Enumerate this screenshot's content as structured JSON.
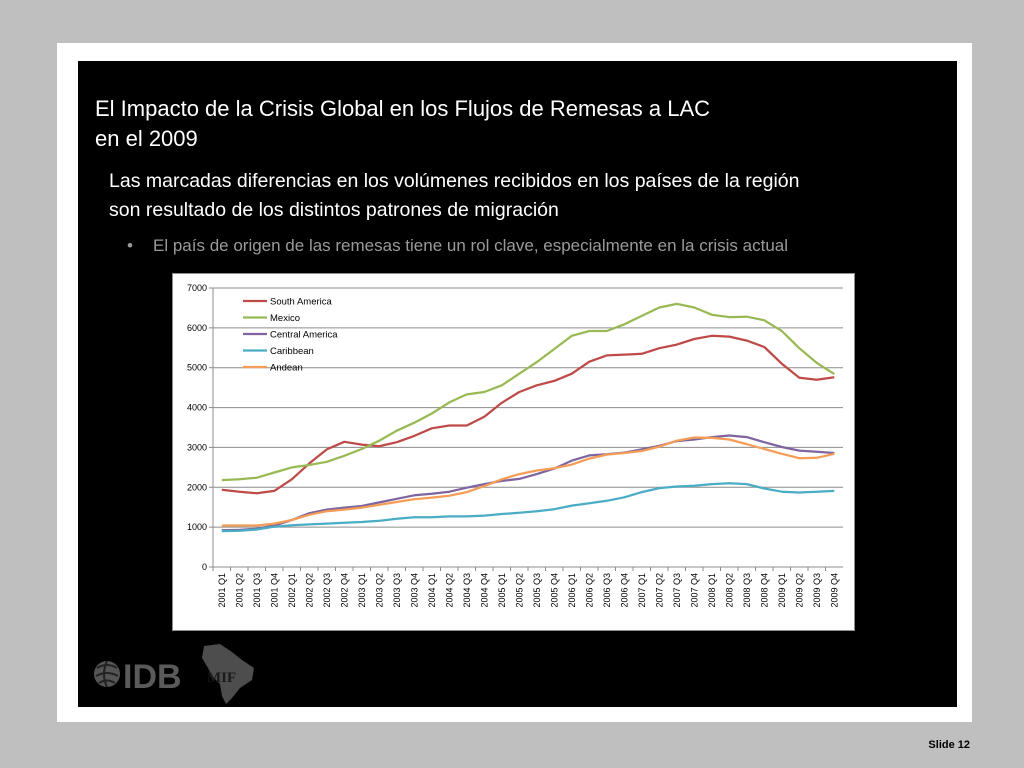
{
  "slide": {
    "title_line1": "El Impacto de la Crisis Global en los Flujos de Remesas a LAC",
    "title_line2": "en el 2009",
    "subtitle_line1": "Las marcadas diferencias en los volúmenes recibidos en los países de la región",
    "subtitle_line2": "son resultado de los distintos patrones de migración",
    "bullet": "El país de origen de las remesas tiene un rol clave, especialmente en la crisis actual",
    "bullet_glyph": "•",
    "logo_text": "IDB",
    "mif_text": "MIF",
    "slide_number": "Slide 12"
  },
  "chart_data": {
    "type": "line",
    "ylim": [
      0,
      7000
    ],
    "yticks": [
      0,
      1000,
      2000,
      3000,
      4000,
      5000,
      6000,
      7000
    ],
    "grid": true,
    "legend_position": "top-left",
    "categories": [
      "2001 Q1",
      "2001 Q2",
      "2001 Q3",
      "2001 Q4",
      "2002 Q1",
      "2002 Q2",
      "2002 Q3",
      "2002 Q4",
      "2003 Q1",
      "2003 Q2",
      "2003 Q3",
      "2003 Q4",
      "2004 Q1",
      "2004 Q2",
      "2004 Q3",
      "2004 Q4",
      "2005 Q1",
      "2005 Q2",
      "2005 Q3",
      "2005 Q4",
      "2006 Q1",
      "2006 Q2",
      "2006 Q3",
      "2006 Q4",
      "2007 Q1",
      "2007 Q2",
      "2007 Q3",
      "2007 Q4",
      "2008 Q1",
      "2008 Q2",
      "2008 Q3",
      "2008 Q4",
      "2009 Q1",
      "2009 Q2",
      "2009 Q3",
      "2009 Q4"
    ],
    "series": [
      {
        "name": "South America",
        "color": "#be4b48",
        "values": [
          1940,
          1890,
          1850,
          1910,
          2200,
          2600,
          2950,
          3140,
          3070,
          3030,
          3130,
          3290,
          3480,
          3550,
          3550,
          3770,
          4120,
          4390,
          4560,
          4670,
          4850,
          5150,
          5310,
          5330,
          5350,
          5490,
          5580,
          5720,
          5800,
          5780,
          5680,
          5520,
          5100,
          4750,
          4700,
          4760
        ]
      },
      {
        "name": "Mexico",
        "color": "#98b954",
        "values": [
          2180,
          2200,
          2240,
          2370,
          2500,
          2560,
          2640,
          2790,
          2960,
          3170,
          3420,
          3620,
          3850,
          4130,
          4330,
          4390,
          4560,
          4850,
          5140,
          5470,
          5800,
          5920,
          5920,
          6090,
          6300,
          6510,
          6600,
          6510,
          6330,
          6270,
          6280,
          6190,
          5920,
          5490,
          5120,
          4840
        ]
      },
      {
        "name": "Central America",
        "color": "#7e65a0",
        "values": [
          920,
          930,
          960,
          1040,
          1180,
          1350,
          1440,
          1490,
          1530,
          1620,
          1710,
          1800,
          1840,
          1890,
          1990,
          2080,
          2160,
          2210,
          2330,
          2470,
          2670,
          2800,
          2830,
          2870,
          2950,
          3040,
          3160,
          3200,
          3260,
          3300,
          3260,
          3130,
          3010,
          2920,
          2890,
          2860
        ]
      },
      {
        "name": "Caribbean",
        "color": "#4aacc5",
        "values": [
          900,
          910,
          940,
          1010,
          1050,
          1070,
          1090,
          1110,
          1130,
          1160,
          1210,
          1250,
          1250,
          1270,
          1270,
          1290,
          1330,
          1360,
          1400,
          1450,
          1540,
          1600,
          1660,
          1750,
          1880,
          1980,
          2020,
          2040,
          2080,
          2100,
          2080,
          1970,
          1890,
          1870,
          1890,
          1910
        ]
      },
      {
        "name": "Andean",
        "color": "#f59d56",
        "values": [
          1040,
          1040,
          1040,
          1090,
          1180,
          1310,
          1400,
          1440,
          1490,
          1560,
          1630,
          1700,
          1740,
          1790,
          1880,
          2030,
          2200,
          2330,
          2420,
          2480,
          2570,
          2720,
          2820,
          2860,
          2910,
          3020,
          3170,
          3250,
          3240,
          3200,
          3080,
          2960,
          2840,
          2730,
          2740,
          2840
        ]
      }
    ]
  }
}
